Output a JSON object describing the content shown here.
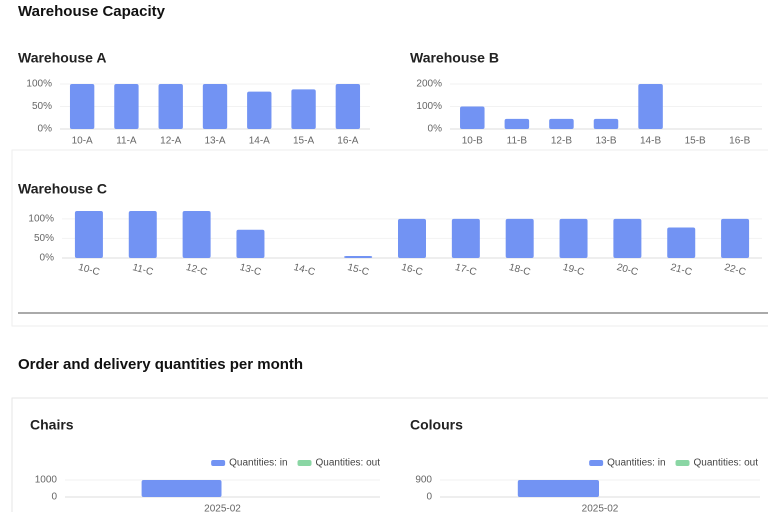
{
  "sections": [
    "Warehouse Capacity",
    "Order and delivery quantities per month"
  ],
  "chart_data": [
    {
      "type": "bar",
      "title": "Warehouse A",
      "color": "#7293f3",
      "categories": [
        "10-A",
        "11-A",
        "12-A",
        "13-A",
        "14-A",
        "15-A",
        "16-A"
      ],
      "values": [
        100,
        100,
        100,
        100,
        83,
        88,
        100
      ],
      "ylim": [
        0,
        100
      ],
      "yticks": [
        {
          "value": 0,
          "label": "0%"
        },
        {
          "value": 50,
          "label": "50%"
        },
        {
          "value": 100,
          "label": "100%"
        }
      ]
    },
    {
      "type": "bar",
      "title": "Warehouse B",
      "color": "#7293f3",
      "categories": [
        "10-B",
        "11-B",
        "12-B",
        "13-B",
        "14-B",
        "15-B",
        "16-B"
      ],
      "values": [
        100,
        45,
        45,
        45,
        200,
        0,
        0
      ],
      "ylim": [
        0,
        200
      ],
      "yticks": [
        {
          "value": 0,
          "label": "0%"
        },
        {
          "value": 100,
          "label": "100%"
        },
        {
          "value": 200,
          "label": "200%"
        }
      ]
    },
    {
      "type": "bar",
      "title": "Warehouse C",
      "color": "#7293f3",
      "categories": [
        "10-C",
        "11-C",
        "12-C",
        "13-C",
        "14-C",
        "15-C",
        "16-C",
        "17-C",
        "18-C",
        "19-C",
        "20-C",
        "21-C",
        "22-C"
      ],
      "values": [
        120,
        120,
        120,
        72,
        0,
        5,
        100,
        100,
        100,
        100,
        100,
        78,
        100
      ],
      "ylim": [
        0,
        120
      ],
      "yticks": [
        {
          "value": 0,
          "label": "0%"
        },
        {
          "value": 50,
          "label": "50%"
        },
        {
          "value": 100,
          "label": "100%"
        }
      ]
    },
    {
      "type": "grouped-bar",
      "title": "Chairs",
      "categories": [
        "2025-02"
      ],
      "series": [
        {
          "name": "Quantities: in",
          "color": "#7293f3",
          "values": [
            1000
          ]
        },
        {
          "name": "Quantities: out",
          "color": "#8ad6a4",
          "values": [
            0
          ]
        }
      ],
      "ylim": [
        0,
        1000
      ],
      "yticks": [
        0,
        1000
      ]
    },
    {
      "type": "grouped-bar",
      "title": "Colours",
      "categories": [
        "2025-02"
      ],
      "series": [
        {
          "name": "Quantities: in",
          "color": "#7293f3",
          "values": [
            900
          ]
        },
        {
          "name": "Quantities: out",
          "color": "#8ad6a4",
          "values": [
            0
          ]
        }
      ],
      "ylim": [
        0,
        900
      ],
      "yticks": [
        0,
        900
      ]
    }
  ]
}
